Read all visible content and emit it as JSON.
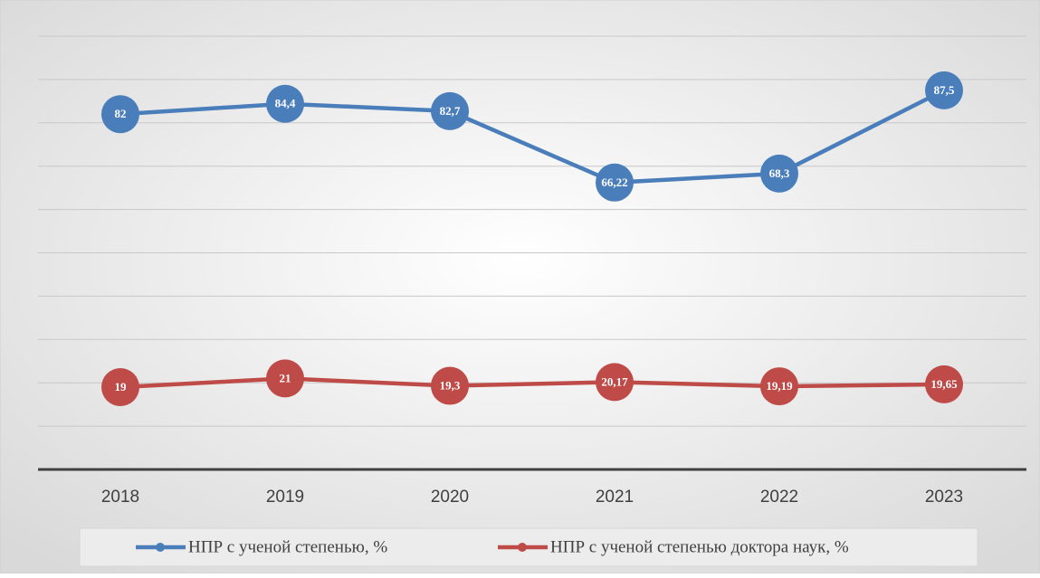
{
  "chart_data": {
    "type": "line",
    "categories": [
      "2018",
      "2019",
      "2020",
      "2021",
      "2022",
      "2023"
    ],
    "series": [
      {
        "name": "НПР с ученой степенью, %",
        "color": "#4a7ebb",
        "values": [
          82,
          84.4,
          82.7,
          66.22,
          68.3,
          87.5
        ],
        "value_labels": [
          "82",
          "84,4",
          "82,7",
          "66,22",
          "68,3",
          "87,5"
        ]
      },
      {
        "name": "НПР с ученой степенью доктора наук, %",
        "color": "#be4b48",
        "values": [
          19,
          21,
          19.3,
          20.17,
          19.19,
          19.65
        ],
        "value_labels": [
          "19",
          "21",
          "19,3",
          "20,17",
          "19,19",
          "19,65"
        ]
      }
    ],
    "ylim": [
      0,
      100
    ],
    "yticks": [
      0,
      10,
      20,
      30,
      40,
      50,
      60,
      70,
      80,
      90,
      100
    ],
    "grid": true,
    "legend": "bottom"
  }
}
